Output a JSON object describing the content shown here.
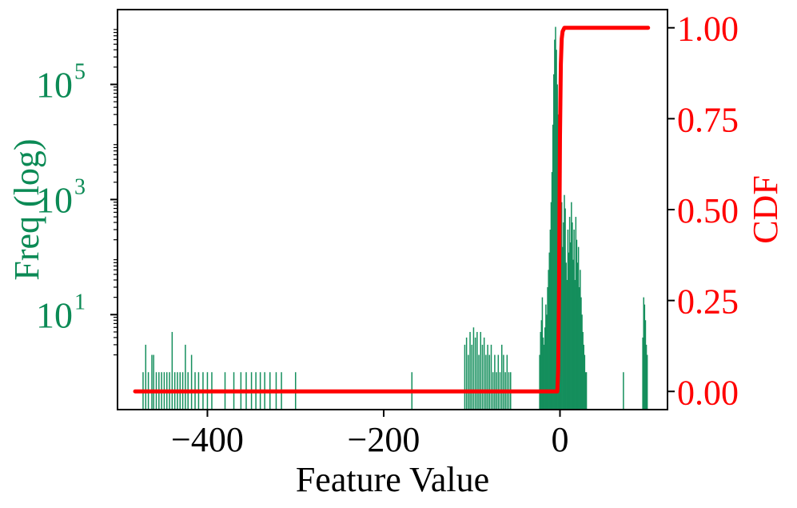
{
  "chart_data": {
    "type": "bar",
    "xlabel": "Feature Value",
    "ylabel_left": "Freq (log)",
    "ylabel_right": "CDF",
    "xlim": [
      -502,
      122
    ],
    "ylim_left_log10": [
      -0.65,
      6.3
    ],
    "ylim_right": [
      -0.05,
      1.05
    ],
    "yscale_left": "log",
    "grid": false,
    "colors": {
      "bars": "#158f5d",
      "left_axis_text": "#0b8a55",
      "cdf_line": "#ff0000",
      "right_axis_text": "#ff0000",
      "frame": "#000000"
    },
    "x_ticks": [
      {
        "value": -400,
        "label": "−400"
      },
      {
        "value": -200,
        "label": "−200"
      },
      {
        "value": 0,
        "label": "0"
      }
    ],
    "y_ticks_left": [
      {
        "exp": 1,
        "base": "10",
        "sup": "1"
      },
      {
        "exp": 3,
        "base": "10",
        "sup": "3"
      },
      {
        "exp": 5,
        "base": "10",
        "sup": "5"
      }
    ],
    "y_ticks_right": [
      {
        "value": 0.0,
        "label": "0.00"
      },
      {
        "value": 0.25,
        "label": "0.25"
      },
      {
        "value": 0.5,
        "label": "0.50"
      },
      {
        "value": 0.75,
        "label": "0.75"
      },
      {
        "value": 1.0,
        "label": "1.00"
      }
    ],
    "histogram": {
      "x": [
        -473,
        -470,
        -467,
        -463,
        -461,
        -458,
        -455,
        -452,
        -449,
        -446,
        -443,
        -440,
        -437,
        -434,
        -431,
        -428,
        -425,
        -422,
        -418,
        -414,
        -410,
        -405,
        -400,
        -395,
        -380,
        -370,
        -362,
        -356,
        -350,
        -345,
        -340,
        -335,
        -329,
        -322,
        -316,
        -300,
        -168,
        -108,
        -106,
        -104,
        -102,
        -100,
        -98,
        -96,
        -94,
        -92,
        -90,
        -88,
        -86,
        -84,
        -82,
        -80,
        -78,
        -76,
        -74,
        -72,
        -70,
        -68,
        -66,
        -64,
        -62,
        -60,
        -58,
        -56,
        -23,
        -22,
        -21,
        -20,
        -19,
        -18,
        -17,
        -16,
        -15,
        -14,
        -13,
        -12,
        -11,
        -10,
        -9,
        -8,
        -7,
        -6,
        -5,
        -4,
        -3,
        -2,
        -1,
        0,
        1,
        2,
        3,
        4,
        5,
        6,
        7,
        8,
        9,
        10,
        11,
        12,
        13,
        14,
        15,
        16,
        17,
        18,
        19,
        20,
        21,
        22,
        23,
        24,
        25,
        26,
        27,
        28,
        29,
        30,
        72,
        94,
        95,
        96,
        97,
        98,
        99
      ],
      "freq": [
        1,
        3,
        1,
        2,
        2,
        1,
        1,
        1,
        1,
        1,
        1,
        5,
        1,
        1,
        1,
        1,
        3,
        1,
        2,
        1,
        1,
        1,
        1,
        1,
        1,
        1,
        1,
        1,
        1,
        1,
        1,
        1,
        1,
        1,
        1,
        1,
        1,
        3,
        4,
        2,
        5,
        3,
        6,
        4,
        5,
        2,
        5,
        3,
        4,
        2,
        3,
        2,
        3,
        1,
        2,
        1,
        2,
        1,
        3,
        2,
        1,
        2,
        1,
        1,
        2,
        5,
        8,
        20,
        4,
        3,
        6,
        15,
        10,
        30,
        60,
        120,
        300,
        900,
        3000,
        20000,
        150000,
        600000,
        1000000,
        400000,
        100000,
        30000,
        8000,
        2000,
        600,
        900,
        150,
        400,
        1200,
        700,
        80,
        40,
        300,
        120,
        500,
        180,
        900,
        400,
        90,
        300,
        40,
        500,
        200,
        80,
        150,
        30,
        60,
        20,
        10,
        5,
        3,
        2,
        1,
        1,
        1,
        4,
        20,
        15,
        8,
        3,
        2
      ]
    },
    "cdf": {
      "x": [
        -482,
        -60,
        -3,
        -2,
        -1,
        0,
        1,
        2,
        3,
        5,
        10,
        100
      ],
      "y": [
        0.0,
        0.0,
        0.0,
        0.06,
        0.3,
        0.7,
        0.9,
        0.97,
        0.99,
        1.0,
        1.0,
        1.0
      ]
    }
  }
}
